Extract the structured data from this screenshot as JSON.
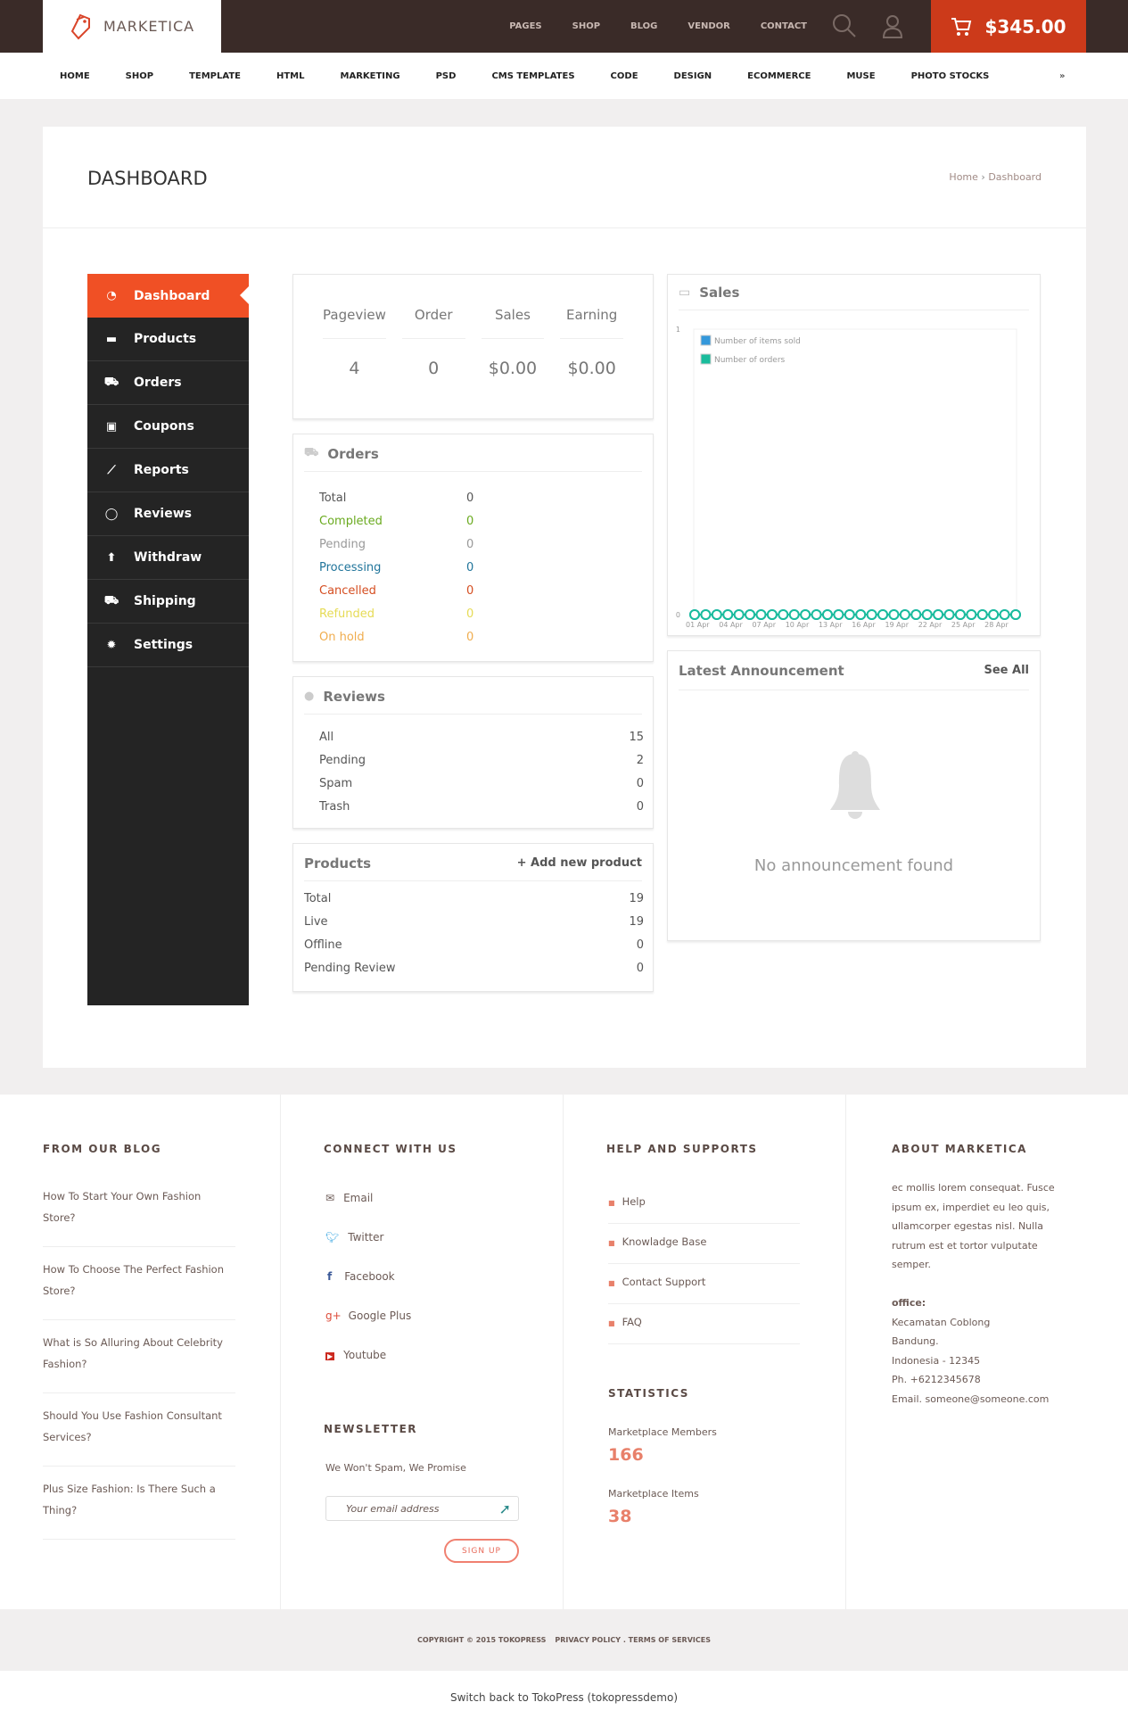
{
  "header": {
    "brand": "MARKETICA",
    "top_nav": [
      "PAGES",
      "SHOP",
      "BLOG",
      "VENDOR",
      "CONTACT"
    ],
    "cart_total": "$345.00",
    "accent": "#cc3a1a"
  },
  "main_nav": [
    "HOME",
    "SHOP",
    "TEMPLATE",
    "HTML",
    "MARKETING",
    "PSD",
    "CMS TEMPLATES",
    "CODE",
    "DESIGN",
    "ECOMMERCE",
    "MUSE",
    "PHOTO STOCKS"
  ],
  "page": {
    "title": "DASHBOARD",
    "breadcrumb": {
      "home": "Home",
      "sep": "›",
      "current": "Dashboard"
    }
  },
  "sidebar": {
    "items": [
      {
        "label": "Dashboard",
        "icon": "dashboard-icon",
        "active": true
      },
      {
        "label": "Products",
        "icon": "briefcase-icon"
      },
      {
        "label": "Orders",
        "icon": "cart-icon"
      },
      {
        "label": "Coupons",
        "icon": "gift-icon"
      },
      {
        "label": "Reports",
        "icon": "line-chart-icon"
      },
      {
        "label": "Reviews",
        "icon": "comments-icon"
      },
      {
        "label": "Withdraw",
        "icon": "upload-icon"
      },
      {
        "label": "Shipping",
        "icon": "truck-icon"
      },
      {
        "label": "Settings",
        "icon": "gear-icon"
      }
    ]
  },
  "stats": [
    {
      "label": "Pageview",
      "value": "4"
    },
    {
      "label": "Order",
      "value": "0"
    },
    {
      "label": "Sales",
      "value": "$0.00"
    },
    {
      "label": "Earning",
      "value": "$0.00"
    }
  ],
  "orders": {
    "title": "Orders",
    "rows": [
      {
        "label": "Total",
        "value": "0",
        "color": "#555555"
      },
      {
        "label": "Completed",
        "value": "0",
        "color": "#6aaa1f"
      },
      {
        "label": "Pending",
        "value": "0",
        "color": "#999999"
      },
      {
        "label": "Processing",
        "value": "0",
        "color": "#21759b"
      },
      {
        "label": "Cancelled",
        "value": "0",
        "color": "#d54e21"
      },
      {
        "label": "Refunded",
        "value": "0",
        "color": "#e6db55"
      },
      {
        "label": "On hold",
        "value": "0",
        "color": "#f0ad4e"
      }
    ]
  },
  "reviews": {
    "title": "Reviews",
    "rows": [
      {
        "label": "All",
        "value": "15"
      },
      {
        "label": "Pending",
        "value": "2"
      },
      {
        "label": "Spam",
        "value": "0"
      },
      {
        "label": "Trash",
        "value": "0"
      }
    ]
  },
  "products": {
    "title": "Products",
    "add_label": "+ Add new product",
    "rows": [
      {
        "label": "Total",
        "value": "19"
      },
      {
        "label": "Live",
        "value": "19"
      },
      {
        "label": "Offline",
        "value": "0"
      },
      {
        "label": "Pending Review",
        "value": "0"
      }
    ]
  },
  "sales": {
    "title": "Sales"
  },
  "chart_data": {
    "type": "line",
    "x": [
      "01 Apr",
      "02 Apr",
      "03 Apr",
      "04 Apr",
      "05 Apr",
      "06 Apr",
      "07 Apr",
      "08 Apr",
      "09 Apr",
      "10 Apr",
      "11 Apr",
      "12 Apr",
      "13 Apr",
      "14 Apr",
      "15 Apr",
      "16 Apr",
      "17 Apr",
      "18 Apr",
      "19 Apr",
      "20 Apr",
      "21 Apr",
      "22 Apr",
      "23 Apr",
      "24 Apr",
      "25 Apr",
      "26 Apr",
      "27 Apr",
      "28 Apr",
      "29 Apr",
      "30 Apr"
    ],
    "x_tick_labels": [
      "01 Apr",
      "04 Apr",
      "07 Apr",
      "10 Apr",
      "13 Apr",
      "16 Apr",
      "19 Apr",
      "22 Apr",
      "25 Apr",
      "28 Apr"
    ],
    "ylim": [
      0,
      1
    ],
    "y_tick_labels": [
      "0",
      "1"
    ],
    "legend": "top-left",
    "series": [
      {
        "name": "Number of items sold",
        "color": "#3498db",
        "values": [
          0,
          0,
          0,
          0,
          0,
          0,
          0,
          0,
          0,
          0,
          0,
          0,
          0,
          0,
          0,
          0,
          0,
          0,
          0,
          0,
          0,
          0,
          0,
          0,
          0,
          0,
          0,
          0,
          0,
          0
        ]
      },
      {
        "name": "Number of orders",
        "color": "#1abc9c",
        "values": [
          0,
          0,
          0,
          0,
          0,
          0,
          0,
          0,
          0,
          0,
          0,
          0,
          0,
          0,
          0,
          0,
          0,
          0,
          0,
          0,
          0,
          0,
          0,
          0,
          0,
          0,
          0,
          0,
          0,
          0
        ]
      }
    ]
  },
  "announcement": {
    "title": "Latest Announcement",
    "see_all": "See All",
    "empty": "No announcement found"
  },
  "footer": {
    "blog": {
      "title": "FROM OUR BLOG",
      "posts": [
        "How To Start Your Own Fashion Store?",
        "How To Choose The Perfect Fashion Store?",
        "What is So Alluring About Celebrity Fashion?",
        "Should You Use Fashion Consultant Services?",
        "Plus Size Fashion: Is There Such a Thing?"
      ]
    },
    "connect": {
      "title": "CONNECT WITH US",
      "links": [
        {
          "label": "Email",
          "icon": "email-icon"
        },
        {
          "label": "Twitter",
          "icon": "twitter-icon"
        },
        {
          "label": "Facebook",
          "icon": "facebook-icon"
        },
        {
          "label": "Google Plus",
          "icon": "google-plus-icon"
        },
        {
          "label": "Youtube",
          "icon": "youtube-icon"
        }
      ]
    },
    "newsletter": {
      "title": "NEWSLETTER",
      "text": "We Won't Spam, We Promise",
      "placeholder": "Your email address",
      "button": "SIGN UP"
    },
    "help": {
      "title": "HELP AND SUPPORTS",
      "links": [
        "Help",
        "Knowladge Base",
        "Contact Support",
        "FAQ"
      ]
    },
    "statistics": {
      "title": "STATISTICS",
      "members_label": "Marketplace Members",
      "members": "166",
      "items_label": "Marketplace Items",
      "items": "38"
    },
    "about": {
      "title": "ABOUT MARKETICA",
      "text": "ec mollis lorem consequat. Fusce ipsum ex, imperdiet eu leo quis, ullamcorper egestas nisl. Nulla rutrum est et tortor vulputate semper.",
      "office_label": "office:",
      "address": [
        "Kecamatan Coblong",
        "Bandung.",
        "Indonesia - 12345",
        "Ph. +6212345678",
        "Email. someone@someone.com"
      ]
    },
    "copyright": "COPYRIGHT © 2015 TOKOPRESS",
    "policy": "PRIVACY POLICY . TERMS OF SERVICES",
    "switch_back": "Switch back to TokoPress (tokopressdemo)"
  }
}
